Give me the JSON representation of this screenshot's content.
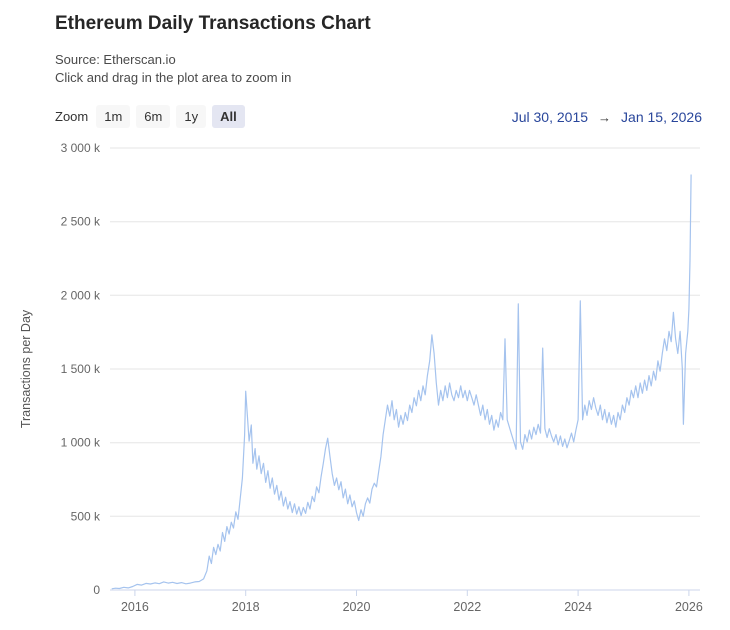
{
  "header": {
    "title": "Ethereum Daily Transactions Chart",
    "source": "Source: Etherscan.io",
    "hint": "Click and drag in the plot area to zoom in"
  },
  "toolbar": {
    "zoom_label": "Zoom",
    "buttons": [
      {
        "label": "1m",
        "selected": false
      },
      {
        "label": "6m",
        "selected": false
      },
      {
        "label": "1y",
        "selected": false
      },
      {
        "label": "All",
        "selected": true
      }
    ],
    "date_from": "Jul 30, 2015",
    "date_arrow": "→",
    "date_to": "Jan 15, 2026"
  },
  "colors": {
    "line": "#a5c3ee",
    "grid": "#e6e6e6",
    "axis": "#ccd6eb",
    "tick_text": "#666666",
    "date_text": "#29469b"
  },
  "chart_data": {
    "type": "line",
    "title": "Ethereum Daily Transactions Chart",
    "xlabel": "",
    "ylabel": "Transactions per Day",
    "unit": "thousand transactions per day",
    "xlim": [
      2015.55,
      2026.2
    ],
    "ylim": [
      0,
      3000
    ],
    "grid": true,
    "x_ticks": [
      2016,
      2018,
      2020,
      2022,
      2024,
      2026
    ],
    "y_ticks": [
      0,
      500,
      1000,
      1500,
      2000,
      2500,
      3000
    ],
    "y_tick_labels": [
      "0",
      "500 k",
      "1 000 k",
      "1 500 k",
      "2 000 k",
      "2 500 k",
      "3 000 k"
    ],
    "points": [
      [
        2015.58,
        8
      ],
      [
        2015.65,
        12
      ],
      [
        2015.72,
        10
      ],
      [
        2015.8,
        18
      ],
      [
        2015.88,
        14
      ],
      [
        2015.96,
        24
      ],
      [
        2016.04,
        38
      ],
      [
        2016.12,
        33
      ],
      [
        2016.2,
        45
      ],
      [
        2016.28,
        41
      ],
      [
        2016.36,
        48
      ],
      [
        2016.44,
        43
      ],
      [
        2016.52,
        55
      ],
      [
        2016.6,
        47
      ],
      [
        2016.68,
        52
      ],
      [
        2016.76,
        44
      ],
      [
        2016.84,
        50
      ],
      [
        2016.92,
        42
      ],
      [
        2017.0,
        47
      ],
      [
        2017.08,
        55
      ],
      [
        2017.16,
        58
      ],
      [
        2017.24,
        75
      ],
      [
        2017.3,
        130
      ],
      [
        2017.34,
        230
      ],
      [
        2017.38,
        180
      ],
      [
        2017.42,
        290
      ],
      [
        2017.46,
        240
      ],
      [
        2017.5,
        310
      ],
      [
        2017.54,
        265
      ],
      [
        2017.58,
        390
      ],
      [
        2017.62,
        330
      ],
      [
        2017.66,
        430
      ],
      [
        2017.7,
        380
      ],
      [
        2017.74,
        460
      ],
      [
        2017.78,
        420
      ],
      [
        2017.82,
        530
      ],
      [
        2017.86,
        480
      ],
      [
        2017.9,
        620
      ],
      [
        2017.94,
        760
      ],
      [
        2017.98,
        1050
      ],
      [
        2018.0,
        1349
      ],
      [
        2018.03,
        1180
      ],
      [
        2018.06,
        1010
      ],
      [
        2018.1,
        1120
      ],
      [
        2018.13,
        860
      ],
      [
        2018.17,
        960
      ],
      [
        2018.2,
        820
      ],
      [
        2018.24,
        910
      ],
      [
        2018.28,
        790
      ],
      [
        2018.32,
        860
      ],
      [
        2018.36,
        730
      ],
      [
        2018.4,
        810
      ],
      [
        2018.44,
        690
      ],
      [
        2018.48,
        760
      ],
      [
        2018.52,
        650
      ],
      [
        2018.56,
        710
      ],
      [
        2018.6,
        610
      ],
      [
        2018.64,
        670
      ],
      [
        2018.68,
        570
      ],
      [
        2018.72,
        630
      ],
      [
        2018.76,
        550
      ],
      [
        2018.8,
        600
      ],
      [
        2018.84,
        525
      ],
      [
        2018.88,
        585
      ],
      [
        2018.92,
        515
      ],
      [
        2018.96,
        565
      ],
      [
        2019.0,
        505
      ],
      [
        2019.04,
        560
      ],
      [
        2019.08,
        520
      ],
      [
        2019.12,
        595
      ],
      [
        2019.16,
        550
      ],
      [
        2019.2,
        635
      ],
      [
        2019.24,
        600
      ],
      [
        2019.28,
        700
      ],
      [
        2019.32,
        660
      ],
      [
        2019.36,
        770
      ],
      [
        2019.4,
        860
      ],
      [
        2019.44,
        960
      ],
      [
        2019.48,
        1030
      ],
      [
        2019.52,
        910
      ],
      [
        2019.56,
        790
      ],
      [
        2019.6,
        710
      ],
      [
        2019.64,
        760
      ],
      [
        2019.68,
        680
      ],
      [
        2019.72,
        735
      ],
      [
        2019.76,
        625
      ],
      [
        2019.8,
        685
      ],
      [
        2019.84,
        585
      ],
      [
        2019.88,
        645
      ],
      [
        2019.92,
        565
      ],
      [
        2019.96,
        605
      ],
      [
        2020.0,
        525
      ],
      [
        2020.04,
        472
      ],
      [
        2020.08,
        545
      ],
      [
        2020.12,
        500
      ],
      [
        2020.16,
        585
      ],
      [
        2020.2,
        625
      ],
      [
        2020.24,
        590
      ],
      [
        2020.28,
        685
      ],
      [
        2020.32,
        725
      ],
      [
        2020.36,
        700
      ],
      [
        2020.4,
        805
      ],
      [
        2020.44,
        905
      ],
      [
        2020.48,
        1055
      ],
      [
        2020.52,
        1155
      ],
      [
        2020.56,
        1255
      ],
      [
        2020.6,
        1180
      ],
      [
        2020.64,
        1285
      ],
      [
        2020.68,
        1155
      ],
      [
        2020.72,
        1225
      ],
      [
        2020.76,
        1105
      ],
      [
        2020.8,
        1185
      ],
      [
        2020.84,
        1125
      ],
      [
        2020.88,
        1205
      ],
      [
        2020.92,
        1150
      ],
      [
        2020.96,
        1255
      ],
      [
        2021.0,
        1205
      ],
      [
        2021.04,
        1305
      ],
      [
        2021.08,
        1250
      ],
      [
        2021.12,
        1355
      ],
      [
        2021.16,
        1285
      ],
      [
        2021.2,
        1385
      ],
      [
        2021.24,
        1325
      ],
      [
        2021.28,
        1455
      ],
      [
        2021.32,
        1555
      ],
      [
        2021.36,
        1732
      ],
      [
        2021.4,
        1605
      ],
      [
        2021.44,
        1405
      ],
      [
        2021.48,
        1255
      ],
      [
        2021.52,
        1355
      ],
      [
        2021.56,
        1285
      ],
      [
        2021.6,
        1385
      ],
      [
        2021.64,
        1305
      ],
      [
        2021.68,
        1405
      ],
      [
        2021.72,
        1325
      ],
      [
        2021.76,
        1285
      ],
      [
        2021.8,
        1355
      ],
      [
        2021.84,
        1305
      ],
      [
        2021.88,
        1385
      ],
      [
        2021.92,
        1305
      ],
      [
        2021.96,
        1355
      ],
      [
        2022.0,
        1285
      ],
      [
        2022.04,
        1355
      ],
      [
        2022.08,
        1305
      ],
      [
        2022.12,
        1255
      ],
      [
        2022.16,
        1325
      ],
      [
        2022.2,
        1255
      ],
      [
        2022.24,
        1185
      ],
      [
        2022.28,
        1255
      ],
      [
        2022.32,
        1155
      ],
      [
        2022.36,
        1225
      ],
      [
        2022.4,
        1125
      ],
      [
        2022.44,
        1185
      ],
      [
        2022.48,
        1085
      ],
      [
        2022.52,
        1155
      ],
      [
        2022.56,
        1105
      ],
      [
        2022.6,
        1205
      ],
      [
        2022.64,
        1155
      ],
      [
        2022.68,
        1705
      ],
      [
        2022.72,
        1155
      ],
      [
        2022.76,
        1105
      ],
      [
        2022.8,
        1055
      ],
      [
        2022.84,
        1005
      ],
      [
        2022.88,
        955
      ],
      [
        2022.92,
        1942
      ],
      [
        2022.96,
        1005
      ],
      [
        2023.0,
        955
      ],
      [
        2023.04,
        1055
      ],
      [
        2023.08,
        1005
      ],
      [
        2023.12,
        1085
      ],
      [
        2023.16,
        1025
      ],
      [
        2023.2,
        1105
      ],
      [
        2023.24,
        1055
      ],
      [
        2023.28,
        1125
      ],
      [
        2023.32,
        1065
      ],
      [
        2023.36,
        1642
      ],
      [
        2023.4,
        1095
      ],
      [
        2023.44,
        1035
      ],
      [
        2023.48,
        1095
      ],
      [
        2023.52,
        1045
      ],
      [
        2023.56,
        1005
      ],
      [
        2023.6,
        1055
      ],
      [
        2023.64,
        985
      ],
      [
        2023.68,
        1045
      ],
      [
        2023.72,
        975
      ],
      [
        2023.76,
        1025
      ],
      [
        2023.8,
        965
      ],
      [
        2023.84,
        1015
      ],
      [
        2023.88,
        1065
      ],
      [
        2023.92,
        1005
      ],
      [
        2023.96,
        1085
      ],
      [
        2024.0,
        1155
      ],
      [
        2024.04,
        1962
      ],
      [
        2024.08,
        1155
      ],
      [
        2024.12,
        1255
      ],
      [
        2024.16,
        1185
      ],
      [
        2024.2,
        1285
      ],
      [
        2024.24,
        1225
      ],
      [
        2024.28,
        1305
      ],
      [
        2024.32,
        1235
      ],
      [
        2024.36,
        1185
      ],
      [
        2024.4,
        1255
      ],
      [
        2024.44,
        1155
      ],
      [
        2024.48,
        1225
      ],
      [
        2024.52,
        1135
      ],
      [
        2024.56,
        1205
      ],
      [
        2024.6,
        1125
      ],
      [
        2024.64,
        1185
      ],
      [
        2024.68,
        1105
      ],
      [
        2024.72,
        1205
      ],
      [
        2024.76,
        1155
      ],
      [
        2024.8,
        1255
      ],
      [
        2024.84,
        1205
      ],
      [
        2024.88,
        1305
      ],
      [
        2024.92,
        1255
      ],
      [
        2024.96,
        1355
      ],
      [
        2025.0,
        1305
      ],
      [
        2025.04,
        1385
      ],
      [
        2025.08,
        1305
      ],
      [
        2025.12,
        1405
      ],
      [
        2025.16,
        1335
      ],
      [
        2025.2,
        1425
      ],
      [
        2025.24,
        1355
      ],
      [
        2025.28,
        1455
      ],
      [
        2025.32,
        1385
      ],
      [
        2025.36,
        1485
      ],
      [
        2025.4,
        1425
      ],
      [
        2025.44,
        1555
      ],
      [
        2025.48,
        1485
      ],
      [
        2025.52,
        1605
      ],
      [
        2025.56,
        1705
      ],
      [
        2025.6,
        1625
      ],
      [
        2025.64,
        1755
      ],
      [
        2025.68,
        1685
      ],
      [
        2025.72,
        1885
      ],
      [
        2025.76,
        1705
      ],
      [
        2025.8,
        1605
      ],
      [
        2025.84,
        1755
      ],
      [
        2025.88,
        1505
      ],
      [
        2025.9,
        1125
      ],
      [
        2025.94,
        1605
      ],
      [
        2025.98,
        1755
      ],
      [
        2026.0,
        1905
      ],
      [
        2026.02,
        2235
      ],
      [
        2026.04,
        2820
      ]
    ]
  }
}
